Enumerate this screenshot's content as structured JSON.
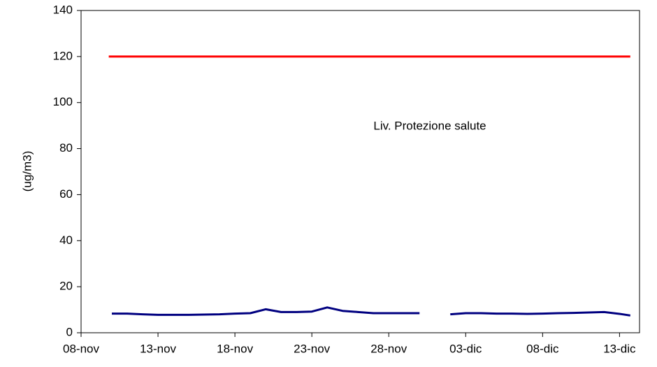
{
  "chart_data": {
    "type": "line",
    "y_label": "(ug/m3)",
    "annotation": "Liv. Protezione salute",
    "xlim": [
      0,
      36.3
    ],
    "xticks": [
      {
        "value": 0,
        "label": "08-nov"
      },
      {
        "value": 5,
        "label": "13-nov"
      },
      {
        "value": 10,
        "label": "18-nov"
      },
      {
        "value": 15,
        "label": "23-nov"
      },
      {
        "value": 20,
        "label": "28-nov"
      },
      {
        "value": 25,
        "label": "03-dic"
      },
      {
        "value": 30,
        "label": "08-dic"
      },
      {
        "value": 35,
        "label": "13-dic"
      }
    ],
    "ylim": [
      0,
      140
    ],
    "yticks": [
      0,
      20,
      40,
      60,
      80,
      100,
      120,
      140
    ],
    "grid": false,
    "series": [
      {
        "color": "#ff0000",
        "x": [
          1.8,
          35.7
        ],
        "values": [
          120,
          120
        ]
      },
      {
        "color": "#000080",
        "x": [
          2,
          3,
          4,
          5,
          6,
          7,
          8,
          9,
          10,
          11,
          12,
          13,
          14,
          15,
          16,
          17,
          18,
          19,
          20,
          21,
          22,
          23,
          24,
          25,
          26,
          27,
          28,
          29,
          30,
          31,
          32,
          33,
          34,
          35,
          35.7
        ],
        "values": [
          8.3,
          8.3,
          8,
          7.8,
          7.8,
          7.8,
          7.9,
          8,
          8.3,
          8.5,
          10.2,
          9,
          9,
          9.2,
          11,
          9.5,
          9,
          8.5,
          8.5,
          8.5,
          8.5,
          null,
          8,
          8.5,
          8.5,
          8.3,
          8.3,
          8.2,
          8.3,
          8.5,
          8.6,
          8.8,
          9,
          8.2,
          7.5
        ]
      }
    ]
  }
}
